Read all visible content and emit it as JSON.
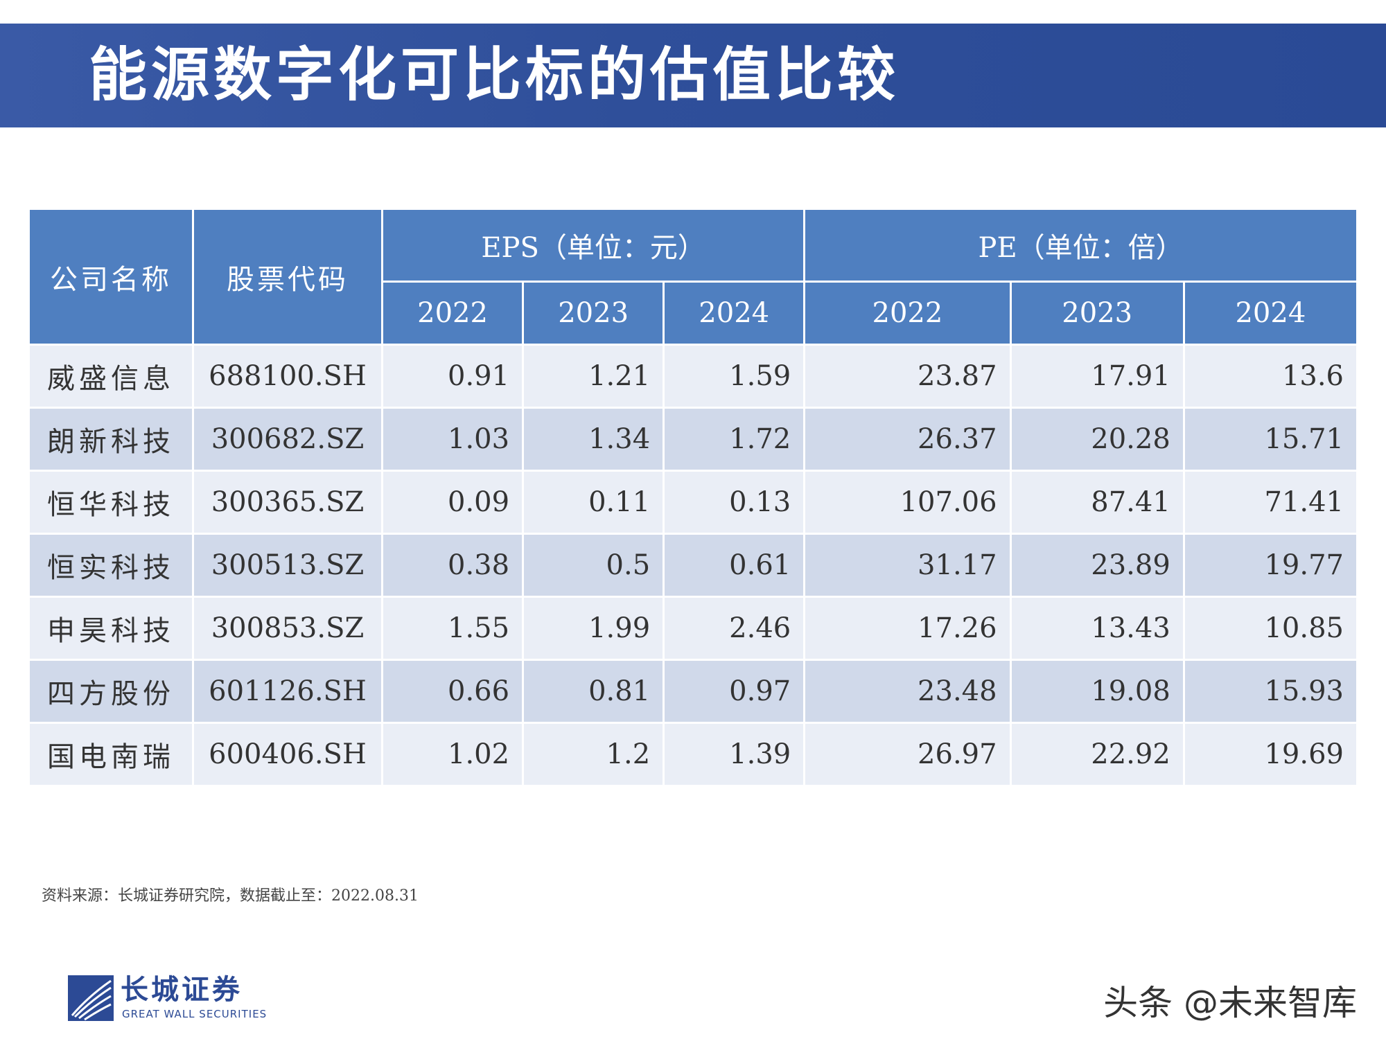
{
  "title": "能源数字化可比标的估值比较",
  "table": {
    "headers": {
      "company": "公司名称",
      "code": "股票代码",
      "eps": "EPS（单位：元）",
      "pe": "PE（单位：倍）",
      "years": [
        "2022",
        "2023",
        "2024",
        "2022",
        "2023",
        "2024"
      ]
    },
    "rows": [
      {
        "name": "威盛信息",
        "code": "688100.SH",
        "eps": [
          "0.91",
          "1.21",
          "1.59"
        ],
        "pe": [
          "23.87",
          "17.91",
          "13.6"
        ]
      },
      {
        "name": "朗新科技",
        "code": "300682.SZ",
        "eps": [
          "1.03",
          "1.34",
          "1.72"
        ],
        "pe": [
          "26.37",
          "20.28",
          "15.71"
        ]
      },
      {
        "name": "恒华科技",
        "code": "300365.SZ",
        "eps": [
          "0.09",
          "0.11",
          "0.13"
        ],
        "pe": [
          "107.06",
          "87.41",
          "71.41"
        ]
      },
      {
        "name": "恒实科技",
        "code": "300513.SZ",
        "eps": [
          "0.38",
          "0.5",
          "0.61"
        ],
        "pe": [
          "31.17",
          "23.89",
          "19.77"
        ]
      },
      {
        "name": "申昊科技",
        "code": "300853.SZ",
        "eps": [
          "1.55",
          "1.99",
          "2.46"
        ],
        "pe": [
          "17.26",
          "13.43",
          "10.85"
        ]
      },
      {
        "name": "四方股份",
        "code": "601126.SH",
        "eps": [
          "0.66",
          "0.81",
          "0.97"
        ],
        "pe": [
          "23.48",
          "19.08",
          "15.93"
        ]
      },
      {
        "name": "国电南瑞",
        "code": "600406.SH",
        "eps": [
          "1.02",
          "1.2",
          "1.39"
        ],
        "pe": [
          "26.97",
          "22.92",
          "19.69"
        ]
      }
    ]
  },
  "source_note": "资料来源：长城证券研究院，数据截止至：2022.08.31",
  "logo": {
    "cn": "长城证券",
    "en": "GREAT WALL SECURITIES"
  },
  "watermark": "头条 @未来智库",
  "colors": {
    "banner": "#2f4f9a",
    "header": "#4f7fc0",
    "row_light": "#eaeef6",
    "row_dark": "#d0d9ea"
  }
}
